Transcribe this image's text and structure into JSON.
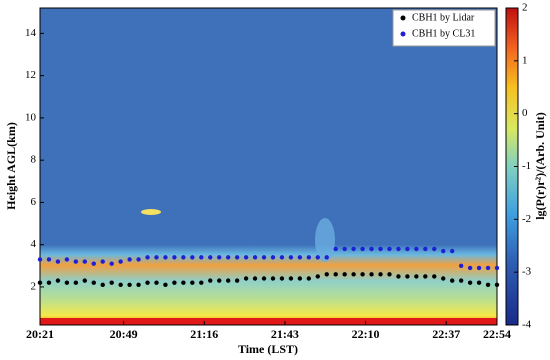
{
  "chart_data": {
    "type": "scatter",
    "xlabel": "Time (LST)",
    "ylabel": "Height AGL(km)",
    "colorbar_label": "lg(P(r)r²)/(Arb. Unit)",
    "xlim": [
      "20:21",
      "22:54"
    ],
    "xticks": [
      "20:21",
      "20:49",
      "21:16",
      "21:43",
      "22:10",
      "22:37",
      "22:54"
    ],
    "ylim": [
      0.2,
      15.2
    ],
    "yticks": [
      2,
      4,
      6,
      8,
      10,
      12,
      14
    ],
    "clim": [
      -4,
      2
    ],
    "cticks": [
      -4,
      -3,
      -2,
      -1,
      0,
      1,
      2
    ],
    "legend": "upper right",
    "x": [
      "20:21",
      "20:24",
      "20:27",
      "20:30",
      "20:33",
      "20:36",
      "20:39",
      "20:42",
      "20:45",
      "20:48",
      "20:51",
      "20:54",
      "20:57",
      "21:00",
      "21:03",
      "21:06",
      "21:09",
      "21:12",
      "21:15",
      "21:18",
      "21:21",
      "21:24",
      "21:27",
      "21:30",
      "21:33",
      "21:36",
      "21:39",
      "21:42",
      "21:45",
      "21:48",
      "21:51",
      "21:54",
      "21:57",
      "22:00",
      "22:03",
      "22:06",
      "22:09",
      "22:12",
      "22:15",
      "22:18",
      "22:21",
      "22:24",
      "22:27",
      "22:30",
      "22:33",
      "22:36",
      "22:39",
      "22:42",
      "22:45",
      "22:48",
      "22:51",
      "22:54"
    ],
    "series": [
      {
        "name": "CBH1 by Lidar",
        "color": "#000000",
        "values": [
          2.2,
          2.2,
          2.3,
          2.2,
          2.2,
          2.3,
          2.2,
          2.1,
          2.2,
          2.1,
          2.1,
          2.1,
          2.2,
          2.2,
          2.1,
          2.2,
          2.2,
          2.2,
          2.2,
          2.3,
          2.3,
          2.3,
          2.3,
          2.4,
          2.4,
          2.4,
          2.4,
          2.4,
          2.4,
          2.4,
          2.4,
          2.5,
          2.6,
          2.6,
          2.6,
          2.6,
          2.6,
          2.6,
          2.6,
          2.6,
          2.5,
          2.5,
          2.5,
          2.5,
          2.5,
          2.4,
          2.3,
          2.3,
          2.2,
          2.2,
          2.1,
          2.1
        ]
      },
      {
        "name": "CBH1 by CL31",
        "color": "#1f1fd6",
        "values": [
          3.3,
          3.3,
          3.2,
          3.3,
          3.2,
          3.2,
          3.1,
          3.2,
          3.1,
          3.2,
          3.3,
          3.3,
          3.4,
          3.4,
          3.4,
          3.4,
          3.4,
          3.4,
          3.4,
          3.4,
          3.4,
          3.4,
          3.4,
          3.4,
          3.4,
          3.4,
          3.4,
          3.4,
          3.4,
          3.4,
          3.4,
          3.4,
          3.4,
          3.8,
          3.8,
          3.8,
          3.8,
          3.8,
          3.8,
          3.8,
          3.8,
          3.8,
          3.8,
          3.8,
          3.8,
          3.7,
          3.7,
          3.0,
          2.9,
          2.9,
          2.9,
          2.9
        ]
      }
    ]
  }
}
